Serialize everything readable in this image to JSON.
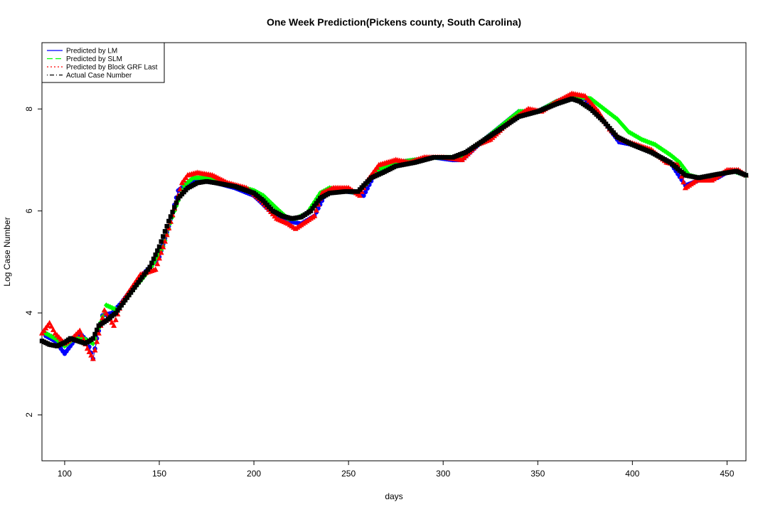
{
  "chart_data": {
    "type": "line",
    "title": "One Week Prediction(Pickens county, South Carolina)",
    "xlabel": "days",
    "ylabel": "Log Case Number",
    "xlim": [
      88,
      460
    ],
    "ylim": [
      1.1,
      9.3
    ],
    "xticks": [
      100,
      150,
      200,
      250,
      300,
      350,
      400,
      450
    ],
    "yticks": [
      2,
      4,
      6,
      8
    ],
    "grid": false,
    "legend_position": "top-left",
    "series": [
      {
        "name": "Predicted by LM",
        "color": "#0000ff",
        "line_style": "solid",
        "marker": "circle",
        "points": [
          [
            90,
            3.55
          ],
          [
            95,
            3.45
          ],
          [
            98,
            3.3
          ],
          [
            100,
            3.2
          ],
          [
            103,
            3.35
          ],
          [
            108,
            3.6
          ],
          [
            112,
            3.45
          ],
          [
            115,
            3.1
          ],
          [
            117,
            3.5
          ],
          [
            120,
            3.95
          ],
          [
            125,
            4.0
          ],
          [
            130,
            4.2
          ],
          [
            140,
            4.7
          ],
          [
            150,
            5.1
          ],
          [
            155,
            5.7
          ],
          [
            160,
            6.4
          ],
          [
            165,
            6.55
          ],
          [
            170,
            6.6
          ],
          [
            180,
            6.55
          ],
          [
            190,
            6.45
          ],
          [
            200,
            6.3
          ],
          [
            210,
            5.95
          ],
          [
            218,
            5.8
          ],
          [
            225,
            5.75
          ],
          [
            232,
            5.9
          ],
          [
            238,
            6.35
          ],
          [
            245,
            6.4
          ],
          [
            255,
            6.35
          ],
          [
            258,
            6.3
          ],
          [
            265,
            6.8
          ],
          [
            275,
            6.95
          ],
          [
            285,
            7.0
          ],
          [
            295,
            7.05
          ],
          [
            305,
            7.0
          ],
          [
            310,
            7.0
          ],
          [
            320,
            7.35
          ],
          [
            330,
            7.65
          ],
          [
            340,
            7.95
          ],
          [
            350,
            7.95
          ],
          [
            360,
            8.15
          ],
          [
            368,
            8.25
          ],
          [
            375,
            8.2
          ],
          [
            385,
            7.75
          ],
          [
            393,
            7.35
          ],
          [
            400,
            7.3
          ],
          [
            410,
            7.15
          ],
          [
            420,
            6.95
          ],
          [
            428,
            6.5
          ],
          [
            435,
            6.6
          ],
          [
            445,
            6.65
          ],
          [
            452,
            6.8
          ],
          [
            460,
            6.7
          ]
        ]
      },
      {
        "name": "Predicted by SLM",
        "color": "#00ff00",
        "line_style": "dashed",
        "marker": "diamond",
        "points": [
          [
            90,
            3.6
          ],
          [
            95,
            3.5
          ],
          [
            100,
            3.35
          ],
          [
            105,
            3.5
          ],
          [
            110,
            3.5
          ],
          [
            115,
            3.4
          ],
          [
            118,
            3.7
          ],
          [
            122,
            4.15
          ],
          [
            128,
            4.05
          ],
          [
            135,
            4.4
          ],
          [
            145,
            4.85
          ],
          [
            152,
            5.3
          ],
          [
            158,
            6.0
          ],
          [
            163,
            6.5
          ],
          [
            168,
            6.65
          ],
          [
            175,
            6.65
          ],
          [
            185,
            6.55
          ],
          [
            195,
            6.45
          ],
          [
            200,
            6.4
          ],
          [
            205,
            6.3
          ],
          [
            212,
            6.05
          ],
          [
            218,
            5.85
          ],
          [
            222,
            5.85
          ],
          [
            228,
            5.95
          ],
          [
            235,
            6.35
          ],
          [
            240,
            6.45
          ],
          [
            248,
            6.4
          ],
          [
            255,
            6.35
          ],
          [
            260,
            6.55
          ],
          [
            265,
            6.8
          ],
          [
            275,
            6.95
          ],
          [
            285,
            7.0
          ],
          [
            295,
            7.05
          ],
          [
            305,
            7.05
          ],
          [
            310,
            7.05
          ],
          [
            320,
            7.35
          ],
          [
            330,
            7.65
          ],
          [
            340,
            7.95
          ],
          [
            350,
            7.95
          ],
          [
            360,
            8.15
          ],
          [
            370,
            8.25
          ],
          [
            378,
            8.2
          ],
          [
            385,
            8.0
          ],
          [
            392,
            7.8
          ],
          [
            398,
            7.55
          ],
          [
            405,
            7.4
          ],
          [
            412,
            7.3
          ],
          [
            420,
            7.1
          ],
          [
            425,
            6.95
          ],
          [
            430,
            6.7
          ],
          [
            435,
            6.65
          ],
          [
            445,
            6.7
          ],
          [
            452,
            6.8
          ],
          [
            460,
            6.7
          ]
        ]
      },
      {
        "name": "Predicted by Block GRF Last",
        "color": "#ff0000",
        "line_style": "dotted",
        "marker": "triangle",
        "points": [
          [
            88,
            3.6
          ],
          [
            92,
            3.8
          ],
          [
            95,
            3.6
          ],
          [
            100,
            3.4
          ],
          [
            104,
            3.5
          ],
          [
            108,
            3.65
          ],
          [
            112,
            3.3
          ],
          [
            115,
            3.1
          ],
          [
            118,
            3.6
          ],
          [
            121,
            4.05
          ],
          [
            126,
            3.75
          ],
          [
            130,
            4.2
          ],
          [
            140,
            4.75
          ],
          [
            148,
            4.85
          ],
          [
            153,
            5.4
          ],
          [
            158,
            6.05
          ],
          [
            162,
            6.55
          ],
          [
            165,
            6.7
          ],
          [
            170,
            6.75
          ],
          [
            178,
            6.7
          ],
          [
            186,
            6.55
          ],
          [
            196,
            6.45
          ],
          [
            204,
            6.2
          ],
          [
            212,
            5.85
          ],
          [
            218,
            5.75
          ],
          [
            222,
            5.65
          ],
          [
            228,
            5.8
          ],
          [
            232,
            5.9
          ],
          [
            236,
            6.35
          ],
          [
            242,
            6.45
          ],
          [
            250,
            6.45
          ],
          [
            256,
            6.3
          ],
          [
            260,
            6.6
          ],
          [
            266,
            6.9
          ],
          [
            275,
            7.0
          ],
          [
            282,
            6.95
          ],
          [
            290,
            7.05
          ],
          [
            300,
            7.05
          ],
          [
            310,
            7.0
          ],
          [
            318,
            7.3
          ],
          [
            325,
            7.4
          ],
          [
            335,
            7.75
          ],
          [
            345,
            8.0
          ],
          [
            352,
            7.95
          ],
          [
            358,
            8.1
          ],
          [
            368,
            8.3
          ],
          [
            375,
            8.25
          ],
          [
            382,
            7.95
          ],
          [
            388,
            7.6
          ],
          [
            394,
            7.4
          ],
          [
            402,
            7.3
          ],
          [
            410,
            7.2
          ],
          [
            418,
            6.95
          ],
          [
            424,
            6.9
          ],
          [
            428,
            6.45
          ],
          [
            434,
            6.6
          ],
          [
            442,
            6.6
          ],
          [
            450,
            6.8
          ],
          [
            456,
            6.8
          ],
          [
            460,
            6.7
          ]
        ]
      },
      {
        "name": "Actual Case Number",
        "color": "#000000",
        "line_style": "dotdash",
        "marker": "square",
        "points": [
          [
            88,
            3.45
          ],
          [
            92,
            3.38
          ],
          [
            96,
            3.35
          ],
          [
            100,
            3.42
          ],
          [
            103,
            3.5
          ],
          [
            107,
            3.45
          ],
          [
            111,
            3.4
          ],
          [
            115,
            3.5
          ],
          [
            118,
            3.75
          ],
          [
            122,
            3.85
          ],
          [
            127,
            4.0
          ],
          [
            132,
            4.25
          ],
          [
            138,
            4.55
          ],
          [
            145,
            4.9
          ],
          [
            150,
            5.3
          ],
          [
            155,
            5.8
          ],
          [
            160,
            6.25
          ],
          [
            165,
            6.45
          ],
          [
            170,
            6.55
          ],
          [
            175,
            6.58
          ],
          [
            180,
            6.55
          ],
          [
            190,
            6.48
          ],
          [
            200,
            6.35
          ],
          [
            205,
            6.2
          ],
          [
            210,
            6.0
          ],
          [
            215,
            5.9
          ],
          [
            220,
            5.85
          ],
          [
            225,
            5.88
          ],
          [
            230,
            6.0
          ],
          [
            235,
            6.25
          ],
          [
            240,
            6.35
          ],
          [
            248,
            6.38
          ],
          [
            255,
            6.38
          ],
          [
            258,
            6.5
          ],
          [
            262,
            6.65
          ],
          [
            268,
            6.75
          ],
          [
            275,
            6.88
          ],
          [
            285,
            6.95
          ],
          [
            295,
            7.05
          ],
          [
            305,
            7.05
          ],
          [
            312,
            7.15
          ],
          [
            320,
            7.35
          ],
          [
            330,
            7.6
          ],
          [
            340,
            7.85
          ],
          [
            350,
            7.95
          ],
          [
            360,
            8.1
          ],
          [
            368,
            8.2
          ],
          [
            372,
            8.15
          ],
          [
            378,
            8.0
          ],
          [
            385,
            7.75
          ],
          [
            392,
            7.45
          ],
          [
            400,
            7.3
          ],
          [
            410,
            7.15
          ],
          [
            420,
            6.95
          ],
          [
            428,
            6.7
          ],
          [
            435,
            6.65
          ],
          [
            445,
            6.72
          ],
          [
            450,
            6.75
          ],
          [
            455,
            6.78
          ],
          [
            460,
            6.7
          ]
        ]
      }
    ]
  }
}
